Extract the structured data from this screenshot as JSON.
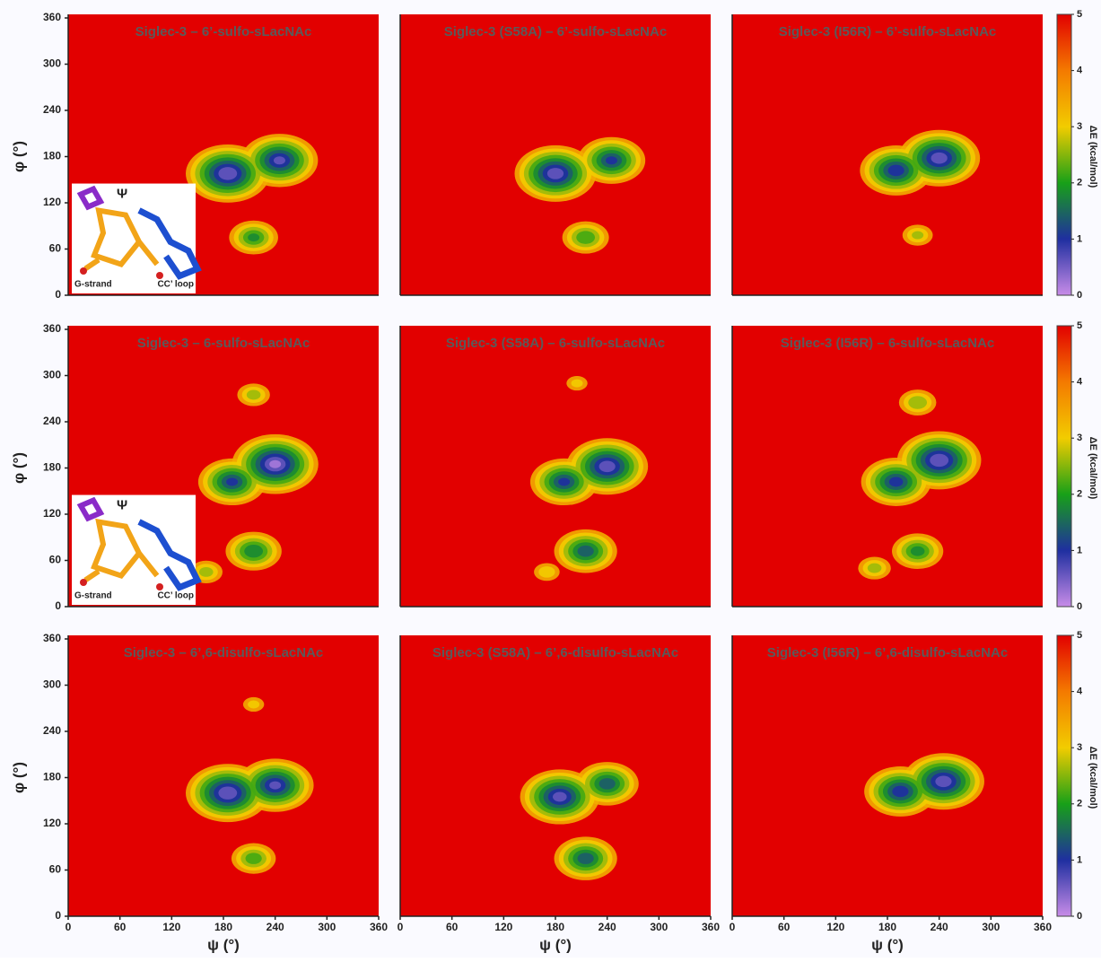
{
  "colormap": [
    "#c88ce8",
    "#1f2fa0",
    "#18a018",
    "#f2cc00",
    "#f47a00",
    "#e20000"
  ],
  "chart_data": [
    {
      "type": "heatmap",
      "title": "Siglec-3 – 6’-sulfo-sLacNAc",
      "ylabel": "φ (°)",
      "ylim": [
        0,
        360
      ],
      "xlim": [
        0,
        360
      ],
      "yticks": [
        0,
        60,
        120,
        180,
        240,
        300,
        360
      ],
      "x": [
        185,
        245,
        215
      ],
      "y": [
        158,
        175,
        75
      ],
      "values": [
        0.3,
        0.6,
        1.8
      ],
      "inset": {
        "angle": "Ψ",
        "left": "G-strand",
        "right": "CC’ loop"
      }
    },
    {
      "type": "heatmap",
      "title": "Siglec-3 (S58A) – 6’-sulfo-sLacNAc",
      "ylim": [
        0,
        360
      ],
      "xlim": [
        0,
        360
      ],
      "x": [
        180,
        245,
        215
      ],
      "y": [
        158,
        175,
        75
      ],
      "values": [
        0.4,
        1.0,
        1.9
      ]
    },
    {
      "type": "heatmap",
      "title": "Siglec-3 (I56R) – 6’-sulfo-sLacNAc",
      "ylim": [
        0,
        360
      ],
      "xlim": [
        0,
        360
      ],
      "x": [
        190,
        240,
        215
      ],
      "y": [
        162,
        178,
        78
      ],
      "values": [
        0.8,
        0.4,
        2.6
      ],
      "colorbar": {
        "label": "ΔE (kcal/mol)",
        "lim": [
          0,
          5
        ],
        "ticks": [
          0,
          1,
          2,
          3,
          4,
          5
        ]
      }
    },
    {
      "type": "heatmap",
      "title": "Siglec-3 – 6-sulfo-sLacNAc",
      "ylabel": "φ (°)",
      "ylim": [
        0,
        360
      ],
      "xlim": [
        0,
        360
      ],
      "yticks": [
        0,
        60,
        120,
        180,
        240,
        300,
        360
      ],
      "x": [
        190,
        240,
        215,
        215,
        160
      ],
      "y": [
        162,
        185,
        72,
        275,
        45
      ],
      "values": [
        1.0,
        0.2,
        1.5,
        2.5,
        2.5
      ],
      "inset": {
        "angle": "Ψ",
        "left": "G-strand",
        "right": "CC’ loop"
      }
    },
    {
      "type": "heatmap",
      "title": "Siglec-3 (S58A) – 6-sulfo-sLacNAc",
      "ylim": [
        0,
        360
      ],
      "xlim": [
        0,
        360
      ],
      "x": [
        190,
        240,
        215,
        205,
        170
      ],
      "y": [
        162,
        182,
        72,
        290,
        45
      ],
      "values": [
        1.0,
        0.4,
        1.2,
        3.0,
        2.8
      ]
    },
    {
      "type": "heatmap",
      "title": "Siglec-3 (I56R) – 6-sulfo-sLacNAc",
      "ylim": [
        0,
        360
      ],
      "xlim": [
        0,
        360
      ],
      "x": [
        190,
        240,
        215,
        215,
        165
      ],
      "y": [
        162,
        190,
        72,
        265,
        50
      ],
      "values": [
        0.9,
        0.3,
        1.7,
        2.3,
        2.5
      ],
      "colorbar": {
        "label": "ΔE (kcal/mol)",
        "lim": [
          0,
          5
        ],
        "ticks": [
          0,
          1,
          2,
          3,
          4,
          5
        ]
      }
    },
    {
      "type": "heatmap",
      "title": "Siglec-3 – 6’,6-disulfo-sLacNAc",
      "ylabel": "φ (°)",
      "xlabel": "ψ (°)",
      "ylim": [
        0,
        360
      ],
      "xlim": [
        0,
        360
      ],
      "yticks": [
        0,
        60,
        120,
        180,
        240,
        300,
        360
      ],
      "xticks": [
        0,
        60,
        120,
        180,
        240,
        300,
        360
      ],
      "x": [
        185,
        240,
        215,
        215
      ],
      "y": [
        160,
        170,
        75,
        275
      ],
      "values": [
        0.3,
        0.6,
        2.0,
        3.0
      ]
    },
    {
      "type": "heatmap",
      "title": "Siglec-3 (S58A) – 6’,6-disulfo-sLacNAc",
      "xlabel": "ψ (°)",
      "ylim": [
        0,
        360
      ],
      "xlim": [
        0,
        360
      ],
      "xticks": [
        0,
        60,
        120,
        180,
        240,
        300,
        360
      ],
      "x": [
        185,
        240,
        215
      ],
      "y": [
        155,
        172,
        75
      ],
      "values": [
        0.5,
        1.2,
        1.2
      ]
    },
    {
      "type": "heatmap",
      "title": "Siglec-3 (I56R) – 6’,6-disulfo-sLacNAc",
      "xlabel": "ψ (°)",
      "ylim": [
        0,
        360
      ],
      "xlim": [
        0,
        360
      ],
      "xticks": [
        0,
        60,
        120,
        180,
        240,
        300,
        360
      ],
      "x": [
        195,
        245
      ],
      "y": [
        162,
        175
      ],
      "values": [
        0.8,
        0.4
      ],
      "colorbar": {
        "label": "ΔE (kcal/mol)",
        "lim": [
          0,
          5
        ],
        "ticks": [
          0,
          1,
          2,
          3,
          4,
          5
        ]
      }
    }
  ]
}
